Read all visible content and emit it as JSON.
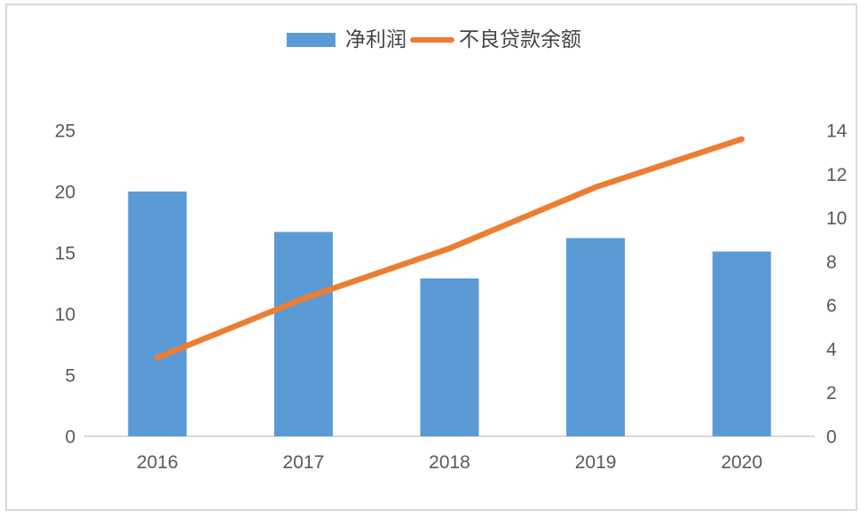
{
  "chart": {
    "legend": {
      "bar_label": "净利润",
      "line_label": "不良贷款余额"
    },
    "colors": {
      "bar": "#5b9bd5",
      "line": "#ed7d31",
      "axis_line": "#d9d9d9",
      "tick_text": "#595959",
      "frame_border": "#d9d9d9"
    }
  },
  "chart_data": {
    "type": "bar",
    "subtype": "combo-bar-line",
    "title": "",
    "xlabel": "",
    "ylabel": "",
    "categories": [
      "2016",
      "2017",
      "2018",
      "2019",
      "2020"
    ],
    "series": [
      {
        "name": "净利润",
        "type": "bar",
        "axis": "left",
        "color": "#5b9bd5",
        "values": [
          20.0,
          16.7,
          12.9,
          16.2,
          15.1
        ]
      },
      {
        "name": "不良贷款余额",
        "type": "line",
        "axis": "right",
        "color": "#ed7d31",
        "values": [
          3.6,
          6.3,
          8.6,
          11.4,
          13.6
        ]
      }
    ],
    "left_axis": {
      "ticks": [
        0,
        5,
        10,
        15,
        20,
        25
      ],
      "range": [
        0,
        25
      ]
    },
    "right_axis": {
      "ticks": [
        0,
        2,
        4,
        6,
        8,
        10,
        12,
        14
      ],
      "range": [
        0,
        14
      ]
    },
    "grid": false,
    "legend_position": "top-center"
  }
}
